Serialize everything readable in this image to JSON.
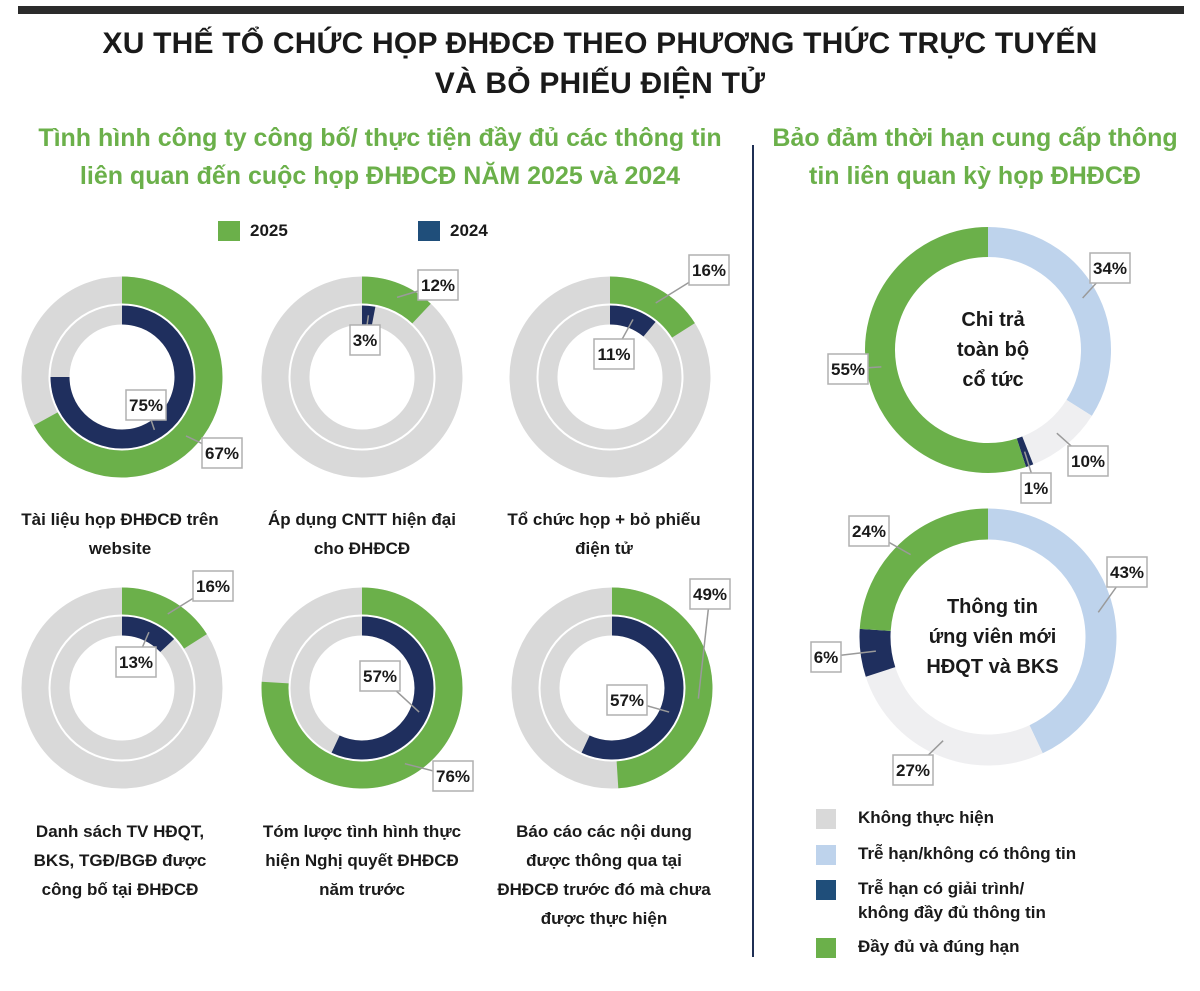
{
  "title": {
    "line1": "XU THẾ TỔ CHỨC HỌP ĐHĐCĐ THEO PHƯƠNG THỨC TRỰC TUYẾN",
    "line2": "VÀ BỎ PHIẾU ĐIỆN TỬ"
  },
  "left_section": {
    "title_line1": "Tình hình công ty công bố/ thực tiện đầy đủ các thông tin",
    "title_line2": "liên quan đến cuộc họp ĐHĐCĐ NĂM 2025 và 2024"
  },
  "right_section": {
    "title_line1": "Bảo đảm thời hạn cung cấp thông",
    "title_line2": "tin liên quan kỳ họp ĐHĐCĐ"
  },
  "colors": {
    "green": "#6bb04a",
    "navy": "#1f2f5e",
    "gray": "#d9d9d9",
    "lightblue": "#bed3ec",
    "offwhite": "#efeff1",
    "accent": "#6bb04a"
  },
  "legend_top": [
    {
      "label": "2025",
      "color": "#6bb04a"
    },
    {
      "label": "2024",
      "color": "#1f4e7a"
    }
  ],
  "legend_right": [
    {
      "label": "Không thực hiện",
      "color": "#d9d9d9"
    },
    {
      "label": "Trễ hạn/không có thông tin",
      "color": "#bed3ec"
    },
    {
      "label": "Trễ hạn có giải trình/",
      "label2": "không đầy đủ thông tin",
      "color": "#1f4e7a"
    },
    {
      "label": "Đầy đủ và đúng hạn",
      "color": "#6bb04a"
    }
  ],
  "chart_data": [
    {
      "type": "pie",
      "subtype": "nested-donut",
      "label_lines": [
        "Tài liệu họp ĐHĐCĐ trên",
        "website"
      ],
      "series": [
        {
          "name": "2025",
          "value": 67,
          "label": "67%"
        },
        {
          "name": "2024",
          "value": 75,
          "label": "75%"
        }
      ]
    },
    {
      "type": "pie",
      "subtype": "nested-donut",
      "label_lines": [
        "Áp dụng CNTT hiện đại",
        "cho ĐHĐCĐ"
      ],
      "series": [
        {
          "name": "2025",
          "value": 12,
          "label": "12%"
        },
        {
          "name": "2024",
          "value": 3,
          "label": "3%"
        }
      ]
    },
    {
      "type": "pie",
      "subtype": "nested-donut",
      "label_lines": [
        "Tổ chức họp + bỏ phiếu",
        "điện tử"
      ],
      "series": [
        {
          "name": "2025",
          "value": 16,
          "label": "16%"
        },
        {
          "name": "2024",
          "value": 11,
          "label": "11%"
        }
      ]
    },
    {
      "type": "pie",
      "subtype": "nested-donut",
      "label_lines": [
        "Danh sách TV HĐQT,",
        "BKS, TGĐ/BGĐ được",
        "công bố tại ĐHĐCĐ"
      ],
      "series": [
        {
          "name": "2025",
          "value": 16,
          "label": "16%"
        },
        {
          "name": "2024",
          "value": 13,
          "label": "13%"
        }
      ]
    },
    {
      "type": "pie",
      "subtype": "nested-donut",
      "label_lines": [
        "Tóm lược tình hình thực",
        "hiện Nghị quyết ĐHĐCĐ",
        "năm trước"
      ],
      "series": [
        {
          "name": "2025",
          "value": 76,
          "label": "76%"
        },
        {
          "name": "2024",
          "value": 57,
          "label": "57%"
        }
      ]
    },
    {
      "type": "pie",
      "subtype": "nested-donut",
      "label_lines": [
        "Báo cáo các nội dung",
        "được thông qua tại",
        "ĐHĐCĐ trước đó mà chưa",
        "được thực hiện"
      ],
      "series": [
        {
          "name": "2025",
          "value": 49,
          "label": "49%"
        },
        {
          "name": "2024",
          "value": 57,
          "label": "57%"
        }
      ]
    },
    {
      "type": "pie",
      "subtype": "donut",
      "center_lines": [
        "Chi trả",
        "toàn bộ",
        "cổ tức"
      ],
      "slices": [
        {
          "name": "Trễ hạn/không có thông tin",
          "value": 34,
          "label": "34%"
        },
        {
          "name": "Không thực hiện",
          "value": 10,
          "label": "10%"
        },
        {
          "name": "Trễ hạn có giải trình/không đầy đủ thông tin",
          "value": 1,
          "label": "1%"
        },
        {
          "name": "Đầy đủ và đúng hạn",
          "value": 55,
          "label": "55%"
        }
      ]
    },
    {
      "type": "pie",
      "subtype": "donut",
      "center_lines": [
        "Thông tin",
        "ứng viên mới",
        "HĐQT và BKS"
      ],
      "slices": [
        {
          "name": "Trễ hạn/không có thông tin",
          "value": 43,
          "label": "43%"
        },
        {
          "name": "Không thực hiện",
          "value": 27,
          "label": "27%"
        },
        {
          "name": "Trễ hạn có giải trình/không đầy đủ thông tin",
          "value": 6,
          "label": "6%"
        },
        {
          "name": "Đầy đủ và đúng hạn",
          "value": 24,
          "label": "24%"
        }
      ]
    }
  ]
}
